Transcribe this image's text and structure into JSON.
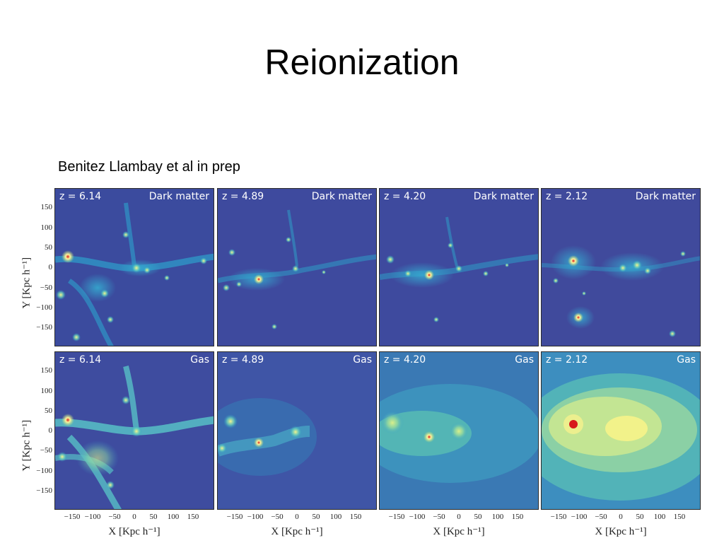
{
  "slide": {
    "title": "Reionization",
    "citation": "Benitez Llambay et al in prep"
  },
  "figure": {
    "rows": [
      {
        "panels": [
          {
            "redshift": "z = 6.14",
            "component": "Dark matter"
          },
          {
            "redshift": "z = 4.89",
            "component": "Dark matter"
          },
          {
            "redshift": "z = 4.20",
            "component": "Dark matter"
          },
          {
            "redshift": "z = 2.12",
            "component": "Dark matter"
          }
        ]
      },
      {
        "panels": [
          {
            "redshift": "z = 6.14",
            "component": "Gas"
          },
          {
            "redshift": "z = 4.89",
            "component": "Gas"
          },
          {
            "redshift": "z = 4.20",
            "component": "Gas"
          },
          {
            "redshift": "z = 2.12",
            "component": "Gas"
          }
        ]
      }
    ],
    "y_axis_label": "Y [Kpc h⁻¹]",
    "x_axis_label": "X [Kpc h⁻¹]",
    "y_ticks": [
      "150",
      "100",
      "50",
      "0",
      "−50",
      "−100",
      "−150"
    ],
    "x_ticks": [
      "−150",
      "−100",
      "−50",
      "0",
      "50",
      "100",
      "150"
    ],
    "colors": {
      "background_low": "#3e4a9a",
      "mid": "#2a9ec8",
      "high": "#f2f07a",
      "peak": "#d7191c"
    }
  }
}
